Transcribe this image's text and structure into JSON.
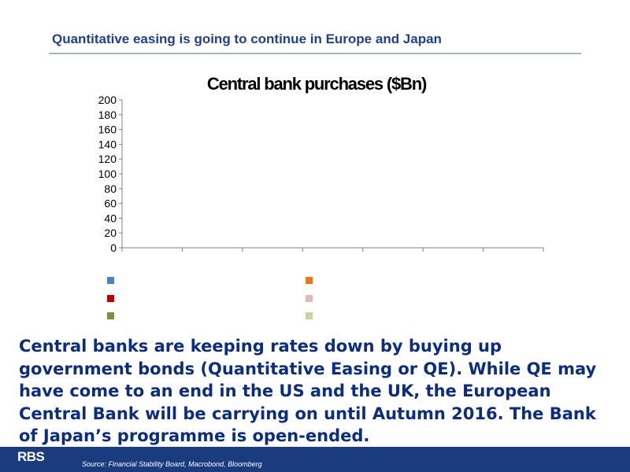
{
  "slide": {
    "title": "Quantitative easing is going to continue in Europe and Japan",
    "body": "Central banks are keeping rates down by buying up government bonds (Quantitative Easing or QE). While QE may have come to an end in the US and the UK, the European Central Bank will be carrying on until Autumn 2016. The Bank of Japan’s programme is open-ended.",
    "logo": "RBS",
    "source": "Source: Financial Stability Board, Macrobond, Bloomberg"
  },
  "colors": {
    "us": "#4f81bd",
    "uk": "#e8771e",
    "japan": "#c00000",
    "japan_forecast": "#e6b9b8",
    "euro": "#77933c",
    "euro_forecast": "#c3d69b",
    "title_blue": "#1f3f8f",
    "text_blue": "#0a2d82",
    "footer": "#1a3c7e"
  },
  "chart_data": {
    "type": "bar",
    "stacked": true,
    "title": "Central bank purchases ($Bn)",
    "ylim": [
      0,
      200
    ],
    "yticks": [
      "0",
      "20",
      "40",
      "60",
      "80",
      "100",
      "120",
      "140",
      "160",
      "180",
      "200"
    ],
    "grid": false,
    "legend_position": "bottom",
    "x_tick_count": 7,
    "series": [
      {
        "key": "euro",
        "color_key": "euro",
        "values": [
          0,
          0,
          0,
          0,
          0,
          0,
          0,
          0,
          0,
          0,
          0,
          0,
          0,
          0,
          0,
          0,
          0,
          0,
          0,
          0,
          0,
          0,
          0,
          0,
          0,
          0,
          0,
          0,
          0,
          0,
          0,
          0,
          0,
          0,
          0,
          0,
          0,
          0,
          0,
          0,
          0,
          0,
          0,
          0,
          0,
          0,
          0,
          0,
          0,
          0,
          0,
          0,
          0,
          0,
          0,
          0,
          0,
          0,
          0,
          0,
          0,
          0,
          0,
          0,
          0,
          0,
          0,
          0,
          0,
          0,
          0,
          0,
          0,
          0,
          0,
          0,
          0,
          0,
          0,
          0,
          0,
          0,
          0,
          0,
          0,
          0,
          0,
          0,
          0,
          0,
          0,
          0,
          0,
          0,
          0,
          0,
          0,
          0,
          0,
          0,
          0,
          0,
          0,
          0,
          0,
          0,
          0,
          0,
          0,
          0,
          0,
          0,
          0,
          0,
          0,
          0,
          0,
          0,
          0,
          0,
          0,
          0,
          0,
          0,
          0,
          0,
          0,
          0,
          0,
          0,
          0,
          0,
          0,
          0,
          0,
          0,
          0,
          0,
          0,
          0,
          0,
          0,
          0,
          0,
          0,
          0,
          0
        ]
      },
      {
        "key": "japan",
        "color_key": "japan",
        "values": [
          0,
          0,
          0,
          0,
          0,
          0,
          0,
          0,
          0,
          0,
          0,
          0,
          0,
          0,
          0,
          0,
          0,
          0,
          0,
          0,
          0,
          0,
          0,
          0,
          0,
          0,
          0,
          0,
          0,
          0,
          0,
          0,
          0,
          0,
          0,
          0,
          0,
          0,
          0,
          0,
          0,
          0,
          0,
          0,
          0,
          0,
          0,
          0,
          0,
          0,
          0,
          0,
          0,
          0,
          0,
          0,
          0,
          0,
          0,
          0,
          0,
          0,
          0,
          0,
          0,
          0,
          0,
          0,
          0,
          0,
          0,
          0,
          0,
          0,
          0,
          0,
          0,
          0,
          0,
          0,
          0,
          0,
          0,
          0,
          0,
          0,
          0,
          0,
          0,
          0,
          0,
          0,
          0,
          0,
          0,
          0,
          0,
          0,
          0,
          0,
          0,
          0,
          0,
          0,
          0,
          0,
          0,
          0,
          0,
          0,
          0,
          0,
          0,
          0,
          0,
          0,
          0,
          0,
          0,
          0,
          0,
          0,
          0,
          0,
          0,
          0,
          0,
          0,
          0,
          0,
          0,
          0,
          0,
          0,
          0,
          0,
          0,
          0,
          0,
          0,
          0,
          0,
          0,
          0,
          0,
          0,
          0
        ]
      }
    ]
  }
}
